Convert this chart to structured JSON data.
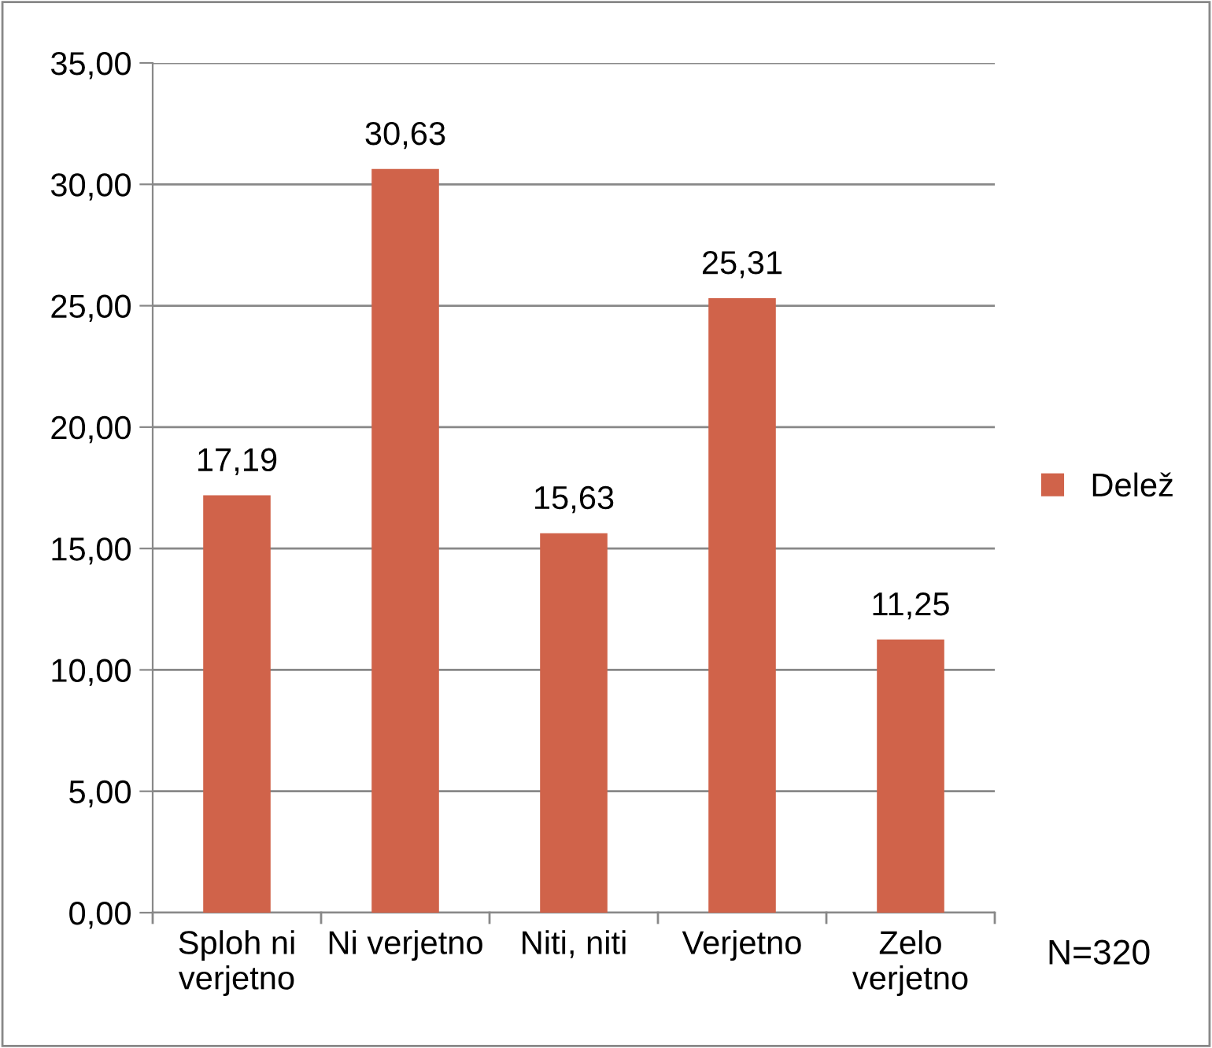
{
  "chart_data": {
    "type": "bar",
    "categories": [
      "Sploh ni\nverjetno",
      "Ni verjetno",
      "Niti, niti",
      "Verjetno",
      "Zelo\nverjetno"
    ],
    "series": [
      {
        "name": "Delež",
        "color": "#d0634a",
        "values": [
          17.19,
          30.63,
          15.63,
          25.31,
          11.25
        ],
        "value_labels": [
          "17,19",
          "30,63",
          "15,63",
          "25,31",
          "11,25"
        ]
      }
    ],
    "ylim": [
      0,
      35
    ],
    "yticks": [
      {
        "value": 0,
        "label": "0,00"
      },
      {
        "value": 5,
        "label": "5,00"
      },
      {
        "value": 10,
        "label": "10,00"
      },
      {
        "value": 15,
        "label": "15,00"
      },
      {
        "value": 20,
        "label": "20,00"
      },
      {
        "value": 25,
        "label": "25,00"
      },
      {
        "value": 30,
        "label": "30,00"
      },
      {
        "value": 35,
        "label": "35,00"
      }
    ],
    "grid": "y",
    "legend": "right",
    "annotations": [
      "N=320"
    ]
  }
}
